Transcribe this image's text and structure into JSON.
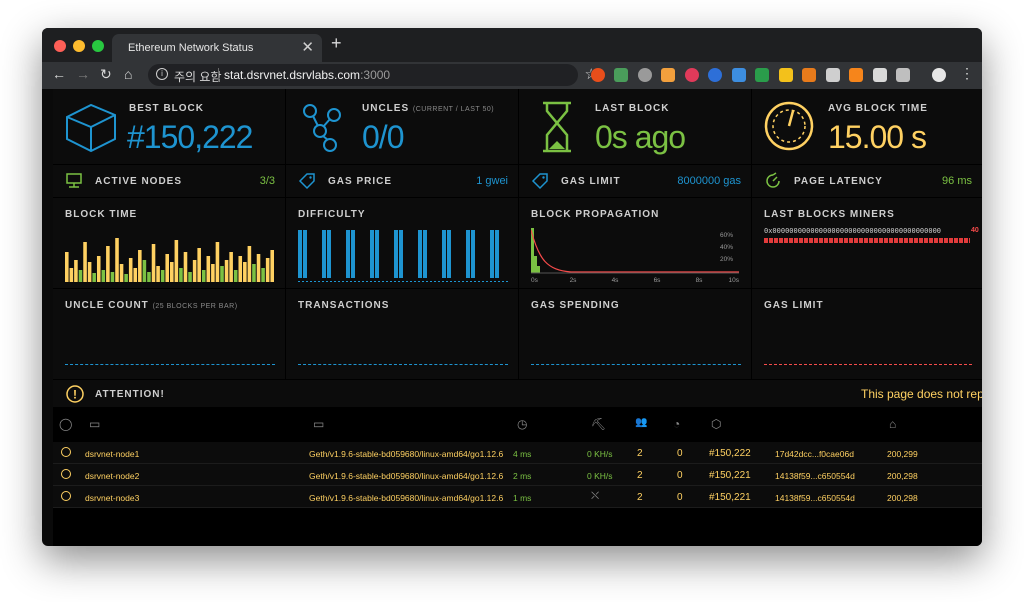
{
  "browser": {
    "tab_title": "Ethereum Network Status",
    "tab_close": "✕",
    "new_tab": "+",
    "security_label": "주의 요함",
    "url_host": "stat.dsrvnet.dsrvlabs.com",
    "url_port": ":3000"
  },
  "stats": {
    "best_block": {
      "label": "BEST BLOCK",
      "value": "#150,222"
    },
    "uncles": {
      "label": "UNCLES",
      "sub": "(CURRENT / LAST 50)",
      "value": "0/0"
    },
    "last_block": {
      "label": "LAST BLOCK",
      "value": "0s ago"
    },
    "avg_block_time": {
      "label": "AVG BLOCK TIME",
      "value": "15.00 s"
    }
  },
  "small_stats": {
    "active_nodes": {
      "label": "ACTIVE NODES",
      "value": "3/3"
    },
    "gas_price": {
      "label": "GAS PRICE",
      "value": "1 gwei"
    },
    "gas_limit": {
      "label": "GAS LIMIT",
      "value": "8000000 gas"
    },
    "page_latency": {
      "label": "PAGE LATENCY",
      "value": "96 ms"
    }
  },
  "charts": {
    "block_time": {
      "label": "BLOCK TIME"
    },
    "difficulty": {
      "label": "DIFFICULTY"
    },
    "block_propagation": {
      "label": "BLOCK PROPAGATION",
      "y_ticks": [
        "60%",
        "40%",
        "20%"
      ],
      "x_ticks": [
        "0s",
        "2s",
        "4s",
        "6s",
        "8s",
        "10s"
      ]
    },
    "last_blocks_miners": {
      "label": "LAST BLOCKS MINERS",
      "miner": "0x0000000000000000000000000000000000000000",
      "count": "40"
    },
    "uncle_count": {
      "label": "UNCLE COUNT",
      "sub": "(25 BLOCKS PER BAR)"
    },
    "transactions": {
      "label": "TRANSACTIONS"
    },
    "gas_spending": {
      "label": "GAS SPENDING"
    },
    "gas_limit": {
      "label": "GAS LIMIT"
    }
  },
  "attention": {
    "label": "ATTENTION!",
    "message": "This page does not repres"
  },
  "nodes": [
    {
      "name": "dsrvnet-node1",
      "client": "Geth/v1.9.6-stable-bd059680/linux-amd64/go1.12.6",
      "latency": "4 ms",
      "hashrate": "0 KH/s",
      "peers": "2",
      "pending": "0",
      "block": "#150,222",
      "hash": "17d42dcc...f0cae06d",
      "difficulty": "200,299"
    },
    {
      "name": "dsrvnet-node2",
      "client": "Geth/v1.9.6-stable-bd059680/linux-amd64/go1.12.6",
      "latency": "2 ms",
      "hashrate": "0 KH/s",
      "peers": "2",
      "pending": "0",
      "block": "#150,221",
      "hash": "14138f59...c650554d",
      "difficulty": "200,298"
    },
    {
      "name": "dsrvnet-node3",
      "client": "Geth/v1.9.6-stable-bd059680/linux-amd64/go1.12.6",
      "latency": "1 ms",
      "hashrate": "",
      "peers": "2",
      "pending": "0",
      "block": "#150,221",
      "hash": "14138f59...c650554d",
      "difficulty": "200,298"
    }
  ],
  "colors": {
    "blue": "#1e94d0",
    "green": "#7bc143",
    "yellow": "#ffd162",
    "red": "#f74b4b"
  }
}
